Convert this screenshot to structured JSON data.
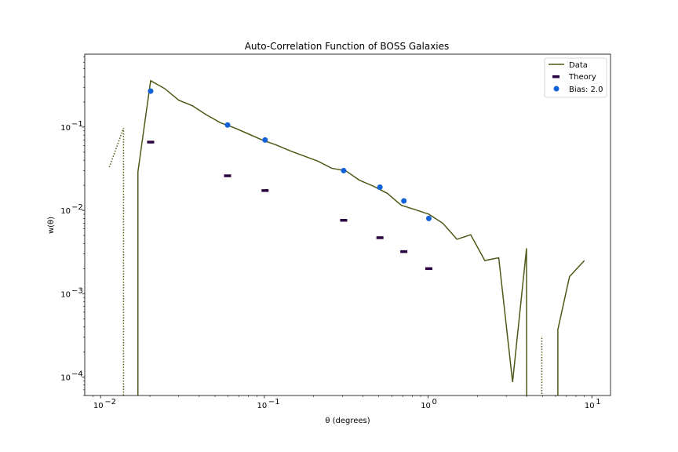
{
  "chart_data": {
    "type": "line",
    "title": "Auto-Correlation Function of BOSS Galaxies",
    "xlabel": "θ (degrees)",
    "ylabel": "w(θ)",
    "xscale": "log",
    "yscale": "log",
    "xlim": [
      0.008,
      13
    ],
    "ylim": [
      6e-05,
      0.75
    ],
    "grid": false,
    "legend": "upper-right",
    "x_ticks": [
      {
        "value": 0.01,
        "base": "10",
        "exp": "−2"
      },
      {
        "value": 0.1,
        "base": "10",
        "exp": "−1"
      },
      {
        "value": 1,
        "base": "10",
        "exp": "0"
      },
      {
        "value": 10,
        "base": "10",
        "exp": "1"
      }
    ],
    "y_ticks": [
      {
        "value": 0.0001,
        "base": "10",
        "exp": "−4"
      },
      {
        "value": 0.001,
        "base": "10",
        "exp": "−3"
      },
      {
        "value": 0.01,
        "base": "10",
        "exp": "−2"
      },
      {
        "value": 0.1,
        "base": "10",
        "exp": "−1"
      }
    ],
    "series": [
      {
        "name": "Data",
        "kind": "line",
        "color": "#4d5a16",
        "points": [
          [
            0.0169,
            1e-06
          ],
          [
            0.0169,
            0.029
          ],
          [
            0.0202,
            0.36
          ],
          [
            0.0246,
            0.29
          ],
          [
            0.03,
            0.21
          ],
          [
            0.0364,
            0.18
          ],
          [
            0.0443,
            0.14
          ],
          [
            0.0538,
            0.113
          ],
          [
            0.0655,
            0.098
          ],
          [
            0.0796,
            0.083
          ],
          [
            0.0968,
            0.07
          ],
          [
            0.118,
            0.061
          ],
          [
            0.143,
            0.052
          ],
          [
            0.174,
            0.045
          ],
          [
            0.212,
            0.039
          ],
          [
            0.258,
            0.032
          ],
          [
            0.313,
            0.03
          ],
          [
            0.381,
            0.023
          ],
          [
            0.464,
            0.0195
          ],
          [
            0.564,
            0.016
          ],
          [
            0.686,
            0.0115
          ],
          [
            0.834,
            0.0102
          ],
          [
            1.01,
            0.009
          ],
          [
            1.23,
            0.007
          ],
          [
            1.5,
            0.0045
          ],
          [
            1.82,
            0.0051
          ],
          [
            2.22,
            0.0025
          ],
          [
            2.7,
            0.0027
          ],
          [
            3.28,
            8.7e-05
          ],
          [
            3.99,
            0.0035
          ],
          [
            4.0,
            1e-06
          ]
        ],
        "points_2": [
          [
            6.2,
            1e-06
          ],
          [
            6.2,
            0.00037
          ],
          [
            7.3,
            0.0016
          ],
          [
            9.0,
            0.0025
          ]
        ],
        "negative_dotted": [
          [
            [
              0.0113,
              0.033
            ],
            [
              0.0138,
              0.097
            ],
            [
              0.0138,
              1e-06
            ]
          ],
          [
            [
              4.95,
              1e-06
            ],
            [
              4.95,
              0.00031
            ]
          ]
        ]
      },
      {
        "name": "Theory",
        "kind": "marker-dash",
        "color": "#2a0340",
        "points": [
          [
            0.0202,
            0.066
          ],
          [
            0.0596,
            0.026
          ],
          [
            0.101,
            0.0173
          ],
          [
            0.305,
            0.0076
          ],
          [
            0.508,
            0.0047
          ],
          [
            0.711,
            0.0032
          ],
          [
            1.01,
            0.002
          ]
        ]
      },
      {
        "name": "Bias: 2.0",
        "kind": "marker-dot",
        "color": "#1162d9",
        "points": [
          [
            0.0202,
            0.27
          ],
          [
            0.0596,
            0.106
          ],
          [
            0.101,
            0.07
          ],
          [
            0.305,
            0.03
          ],
          [
            0.508,
            0.019
          ],
          [
            0.711,
            0.013
          ],
          [
            1.01,
            0.008
          ]
        ]
      }
    ]
  }
}
